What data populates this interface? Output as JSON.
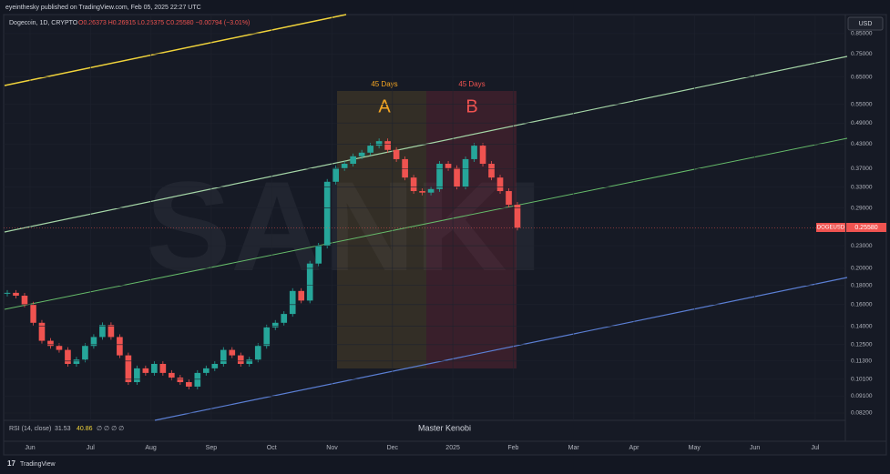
{
  "header": {
    "publisher": "eyeinthesky published on TradingView.com, Feb 05, 2025 22:27 UTC",
    "symbol": "Dogecoin, 1D, CRYPTO",
    "ohlc": "O0.26373 H0.26915 L0.25375 C0.25580 −0.00794 (−3.01%)",
    "currency": "USD"
  },
  "price_axis": {
    "log": true,
    "range": [
      0.0784,
      0.945
    ],
    "ticks": [
      {
        "value": 0.85,
        "label": "0.85000"
      },
      {
        "value": 0.75,
        "label": "0.75000"
      },
      {
        "value": 0.65,
        "label": "0.65000"
      },
      {
        "value": 0.55,
        "label": "0.55000"
      },
      {
        "value": 0.49,
        "label": "0.49000"
      },
      {
        "value": 0.43,
        "label": "0.43000"
      },
      {
        "value": 0.37,
        "label": "0.37000"
      },
      {
        "value": 0.33,
        "label": "0.33000"
      },
      {
        "value": 0.29,
        "label": "0.29000"
      },
      {
        "value": 0.23,
        "label": "0.23000"
      },
      {
        "value": 0.2,
        "label": "0.20000"
      },
      {
        "value": 0.18,
        "label": "0.18000"
      },
      {
        "value": 0.16,
        "label": "0.16000"
      },
      {
        "value": 0.14,
        "label": "0.14000"
      },
      {
        "value": 0.125,
        "label": "0.12500"
      },
      {
        "value": 0.113,
        "label": "0.11300"
      },
      {
        "value": 0.101,
        "label": "0.10100"
      },
      {
        "value": 0.091,
        "label": "0.09100"
      },
      {
        "value": 0.082,
        "label": "0.08200"
      }
    ]
  },
  "price_tag": {
    "symbol": "DOGEUSD",
    "value": "0.25580"
  },
  "time_axis": [
    "Jun",
    "Jul",
    "Aug",
    "Sep",
    "Oct",
    "Nov",
    "Dec",
    "2025",
    "Feb",
    "Mar",
    "Apr",
    "May",
    "Jun",
    "Jul"
  ],
  "closes": [
    0.172,
    0.169,
    0.16,
    0.143,
    0.128,
    0.124,
    0.121,
    0.111,
    0.114,
    0.124,
    0.131,
    0.141,
    0.131,
    0.117,
    0.0992,
    0.108,
    0.105,
    0.111,
    0.105,
    0.102,
    0.0992,
    0.0965,
    0.105,
    0.108,
    0.111,
    0.121,
    0.117,
    0.111,
    0.114,
    0.124,
    0.139,
    0.143,
    0.151,
    0.174,
    0.164,
    0.206,
    0.23,
    0.341,
    0.371,
    0.381,
    0.399,
    0.408,
    0.426,
    0.438,
    0.415,
    0.392,
    0.35,
    0.322,
    0.319,
    0.326,
    0.381,
    0.371,
    0.331,
    0.392,
    0.426,
    0.381,
    0.35,
    0.322,
    0.296,
    0.257
  ],
  "annotations": {
    "period_a": {
      "duration": "45 Days",
      "letter": "A"
    },
    "period_b": {
      "duration": "45 Days",
      "letter": "B"
    },
    "watermark": "SANKI",
    "author": "Master Kenobi"
  },
  "rsi": {
    "label": "RSI (14, close)",
    "value1": "31.53",
    "value2": "40.86",
    "rest": "∅ ∅ ∅ ∅"
  },
  "footer": {
    "brand": "TradingView"
  }
}
